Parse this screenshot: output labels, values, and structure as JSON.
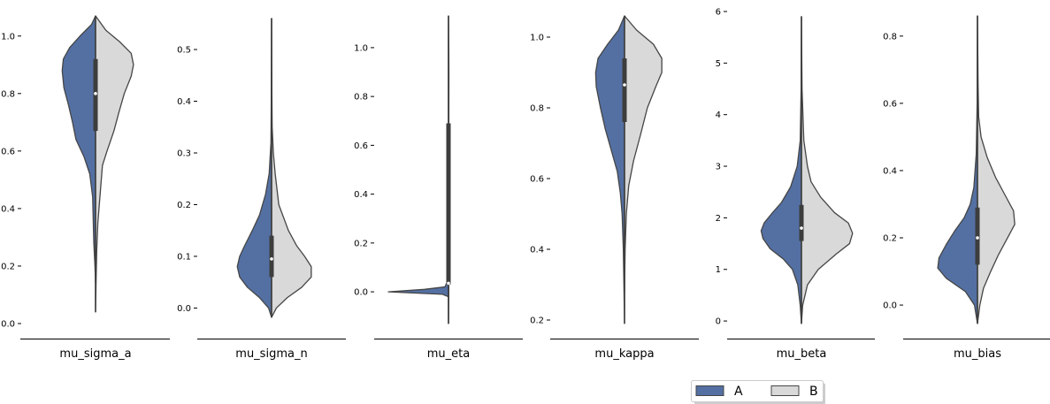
{
  "colors": {
    "A": "#5470a3",
    "B": "#d9d9d9",
    "outline": "#454545",
    "box": "#3d3d3d",
    "median": "#ffffff",
    "axis": "#000000"
  },
  "legend": {
    "placement": "bottom-right",
    "entries": [
      "A",
      "B"
    ]
  },
  "chart_data": [
    {
      "type": "violin",
      "xlabel": "mu_sigma_a",
      "ylim": [
        0.0,
        1.07
      ],
      "yticks": [
        0.0,
        0.2,
        0.4,
        0.6,
        0.8,
        1.0
      ],
      "ytick_labels": [
        "0.0",
        "0.2",
        "0.4",
        "0.6",
        "0.8",
        "1.0"
      ],
      "series": [
        {
          "name": "A",
          "y_min": 0.14,
          "y_max": 1.07,
          "profile": [
            [
              0.14,
              0.0
            ],
            [
              0.2,
              0.01
            ],
            [
              0.28,
              0.03
            ],
            [
              0.36,
              0.04
            ],
            [
              0.44,
              0.05
            ],
            [
              0.52,
              0.1
            ],
            [
              0.58,
              0.2
            ],
            [
              0.64,
              0.34
            ],
            [
              0.7,
              0.4
            ],
            [
              0.76,
              0.47
            ],
            [
              0.82,
              0.55
            ],
            [
              0.88,
              0.58
            ],
            [
              0.92,
              0.56
            ],
            [
              0.96,
              0.45
            ],
            [
              1.0,
              0.27
            ],
            [
              1.04,
              0.07
            ],
            [
              1.07,
              0.0
            ]
          ]
        },
        {
          "name": "B",
          "y_min": 0.04,
          "y_max": 1.07,
          "profile": [
            [
              0.04,
              0.0
            ],
            [
              0.15,
              0.01
            ],
            [
              0.25,
              0.02
            ],
            [
              0.35,
              0.04
            ],
            [
              0.45,
              0.08
            ],
            [
              0.55,
              0.12
            ],
            [
              0.6,
              0.2
            ],
            [
              0.67,
              0.32
            ],
            [
              0.73,
              0.4
            ],
            [
              0.8,
              0.5
            ],
            [
              0.86,
              0.62
            ],
            [
              0.9,
              0.66
            ],
            [
              0.94,
              0.62
            ],
            [
              0.98,
              0.42
            ],
            [
              1.02,
              0.18
            ],
            [
              1.07,
              0.0
            ]
          ]
        }
      ],
      "box": {
        "q1": 0.67,
        "q3": 0.92,
        "median": 0.8
      }
    },
    {
      "type": "violin",
      "xlabel": "mu_sigma_n",
      "ylim": [
        -0.03,
        0.565
      ],
      "yticks": [
        0.0,
        0.1,
        0.2,
        0.3,
        0.4,
        0.5
      ],
      "ytick_labels": [
        "0.0",
        "0.1",
        "0.2",
        "0.3",
        "0.4",
        "0.5"
      ],
      "series": [
        {
          "name": "A",
          "y_min": -0.018,
          "y_max": 0.56,
          "profile": [
            [
              -0.018,
              0.0
            ],
            [
              0.0,
              0.05
            ],
            [
              0.02,
              0.2
            ],
            [
              0.04,
              0.4
            ],
            [
              0.06,
              0.53
            ],
            [
              0.08,
              0.57
            ],
            [
              0.1,
              0.53
            ],
            [
              0.12,
              0.45
            ],
            [
              0.15,
              0.32
            ],
            [
              0.18,
              0.2
            ],
            [
              0.22,
              0.1
            ],
            [
              0.26,
              0.04
            ],
            [
              0.32,
              0.01
            ],
            [
              0.4,
              0.005
            ],
            [
              0.56,
              0.0
            ]
          ]
        },
        {
          "name": "B",
          "y_min": -0.018,
          "y_max": 0.56,
          "profile": [
            [
              -0.018,
              0.0
            ],
            [
              0.0,
              0.08
            ],
            [
              0.02,
              0.26
            ],
            [
              0.04,
              0.5
            ],
            [
              0.06,
              0.66
            ],
            [
              0.08,
              0.66
            ],
            [
              0.1,
              0.55
            ],
            [
              0.12,
              0.42
            ],
            [
              0.15,
              0.28
            ],
            [
              0.2,
              0.12
            ],
            [
              0.26,
              0.06
            ],
            [
              0.3,
              0.03
            ],
            [
              0.35,
              0.01
            ],
            [
              0.42,
              0.005
            ],
            [
              0.56,
              0.0
            ]
          ]
        }
      ],
      "box": {
        "q1": 0.06,
        "q3": 0.14,
        "median": 0.095
      }
    },
    {
      "type": "violin",
      "xlabel": "mu_eta",
      "ylim": [
        -0.13,
        1.13
      ],
      "yticks": [
        0.0,
        0.2,
        0.4,
        0.6,
        0.8,
        1.0
      ],
      "ytick_labels": [
        "0.0",
        "0.2",
        "0.4",
        "0.6",
        "0.8",
        "1.0"
      ],
      "series": [
        {
          "name": "A",
          "y_min": -0.13,
          "y_max": 1.13,
          "profile": [
            [
              -0.13,
              0.0
            ],
            [
              -0.02,
              0.0
            ],
            [
              -0.01,
              0.1
            ],
            [
              0.0,
              1.0
            ],
            [
              0.01,
              0.4
            ],
            [
              0.02,
              0.06
            ],
            [
              0.05,
              0.0
            ],
            [
              1.13,
              0.0
            ]
          ]
        },
        {
          "name": "B",
          "y_min": -0.13,
          "y_max": 1.13,
          "profile": [
            [
              -0.13,
              0.0
            ],
            [
              0.0,
              0.005
            ],
            [
              0.1,
              0.005
            ],
            [
              0.5,
              0.005
            ],
            [
              0.9,
              0.007
            ],
            [
              1.0,
              0.005
            ],
            [
              1.13,
              0.0
            ]
          ]
        }
      ],
      "box": {
        "q1": 0.03,
        "q3": 0.69,
        "median": 0.035
      }
    },
    {
      "type": "violin",
      "xlabel": "mu_kappa",
      "ylim": [
        0.19,
        1.06
      ],
      "yticks": [
        0.2,
        0.4,
        0.6,
        0.8,
        1.0
      ],
      "ytick_labels": [
        "0.2",
        "0.4",
        "0.6",
        "0.8",
        "1.0"
      ],
      "series": [
        {
          "name": "A",
          "y_min": 0.19,
          "y_max": 1.06,
          "profile": [
            [
              0.19,
              0.0
            ],
            [
              0.3,
              0.01
            ],
            [
              0.4,
              0.02
            ],
            [
              0.5,
              0.04
            ],
            [
              0.56,
              0.07
            ],
            [
              0.62,
              0.12
            ],
            [
              0.68,
              0.22
            ],
            [
              0.74,
              0.32
            ],
            [
              0.8,
              0.4
            ],
            [
              0.86,
              0.47
            ],
            [
              0.9,
              0.48
            ],
            [
              0.94,
              0.44
            ],
            [
              0.98,
              0.28
            ],
            [
              1.02,
              0.1
            ],
            [
              1.06,
              0.0
            ]
          ]
        },
        {
          "name": "B",
          "y_min": 0.28,
          "y_max": 1.06,
          "profile": [
            [
              0.28,
              0.0
            ],
            [
              0.4,
              0.01
            ],
            [
              0.5,
              0.03
            ],
            [
              0.58,
              0.07
            ],
            [
              0.65,
              0.15
            ],
            [
              0.72,
              0.26
            ],
            [
              0.8,
              0.38
            ],
            [
              0.86,
              0.52
            ],
            [
              0.9,
              0.62
            ],
            [
              0.94,
              0.62
            ],
            [
              0.98,
              0.48
            ],
            [
              1.02,
              0.2
            ],
            [
              1.06,
              0.0
            ]
          ]
        }
      ],
      "box": {
        "q1": 0.76,
        "q3": 0.94,
        "median": 0.865
      }
    },
    {
      "type": "violin",
      "xlabel": "mu_beta",
      "ylim": [
        -0.05,
        6.0
      ],
      "yticks": [
        0,
        1,
        2,
        3,
        4,
        5,
        6
      ],
      "ytick_labels": [
        "0",
        "1",
        "2",
        "3",
        "4",
        "5",
        "6"
      ],
      "series": [
        {
          "name": "A",
          "y_min": -0.05,
          "y_max": 5.9,
          "profile": [
            [
              -0.05,
              0.0
            ],
            [
              0.3,
              0.02
            ],
            [
              0.7,
              0.06
            ],
            [
              1.0,
              0.15
            ],
            [
              1.2,
              0.3
            ],
            [
              1.4,
              0.52
            ],
            [
              1.6,
              0.64
            ],
            [
              1.75,
              0.67
            ],
            [
              1.9,
              0.62
            ],
            [
              2.1,
              0.48
            ],
            [
              2.3,
              0.33
            ],
            [
              2.6,
              0.18
            ],
            [
              3.0,
              0.07
            ],
            [
              3.5,
              0.02
            ],
            [
              4.5,
              0.005
            ],
            [
              5.9,
              0.0
            ]
          ]
        },
        {
          "name": "B",
          "y_min": -0.05,
          "y_max": 5.9,
          "profile": [
            [
              -0.05,
              0.0
            ],
            [
              0.3,
              0.02
            ],
            [
              0.7,
              0.1
            ],
            [
              1.0,
              0.28
            ],
            [
              1.3,
              0.58
            ],
            [
              1.5,
              0.8
            ],
            [
              1.7,
              0.85
            ],
            [
              1.9,
              0.78
            ],
            [
              2.1,
              0.55
            ],
            [
              2.4,
              0.32
            ],
            [
              2.7,
              0.16
            ],
            [
              3.0,
              0.1
            ],
            [
              3.5,
              0.04
            ],
            [
              4.5,
              0.01
            ],
            [
              5.9,
              0.0
            ]
          ]
        }
      ],
      "box": {
        "q1": 1.55,
        "q3": 2.25,
        "median": 1.8
      }
    },
    {
      "type": "violin",
      "xlabel": "mu_bias",
      "ylim": [
        -0.055,
        0.86
      ],
      "yticks": [
        0.0,
        0.2,
        0.4,
        0.6,
        0.8
      ],
      "ytick_labels": [
        "0.0",
        "0.2",
        "0.4",
        "0.6",
        "0.8"
      ],
      "series": [
        {
          "name": "A",
          "y_min": -0.055,
          "y_max": 0.86,
          "profile": [
            [
              -0.055,
              0.0
            ],
            [
              0.0,
              0.05
            ],
            [
              0.04,
              0.2
            ],
            [
              0.08,
              0.52
            ],
            [
              0.11,
              0.66
            ],
            [
              0.14,
              0.64
            ],
            [
              0.18,
              0.52
            ],
            [
              0.22,
              0.38
            ],
            [
              0.26,
              0.22
            ],
            [
              0.3,
              0.12
            ],
            [
              0.35,
              0.06
            ],
            [
              0.45,
              0.02
            ],
            [
              0.6,
              0.005
            ],
            [
              0.86,
              0.0
            ]
          ]
        },
        {
          "name": "B",
          "y_min": -0.055,
          "y_max": 0.86,
          "profile": [
            [
              -0.055,
              0.0
            ],
            [
              0.0,
              0.04
            ],
            [
              0.05,
              0.1
            ],
            [
              0.1,
              0.22
            ],
            [
              0.15,
              0.35
            ],
            [
              0.2,
              0.5
            ],
            [
              0.24,
              0.62
            ],
            [
              0.28,
              0.6
            ],
            [
              0.32,
              0.48
            ],
            [
              0.38,
              0.3
            ],
            [
              0.44,
              0.16
            ],
            [
              0.5,
              0.06
            ],
            [
              0.56,
              0.02
            ],
            [
              0.66,
              0.01
            ],
            [
              0.86,
              0.0
            ]
          ]
        }
      ],
      "box": {
        "q1": 0.12,
        "q3": 0.29,
        "median": 0.2
      }
    }
  ]
}
